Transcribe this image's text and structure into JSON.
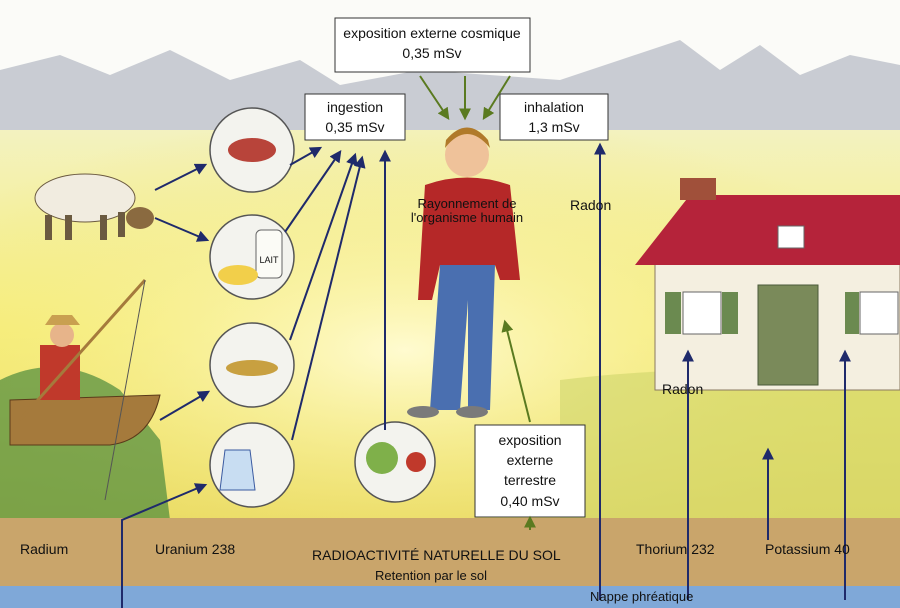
{
  "boxes": {
    "cosmic": {
      "label": "exposition externe cosmique",
      "dose": "0,35 mSv"
    },
    "ingestion": {
      "label": "ingestion",
      "dose": "0,35 mSv"
    },
    "inhalation": {
      "label": "inhalation",
      "dose": "1,3 mSv"
    },
    "terrestrial": {
      "lines": [
        "exposition",
        "externe",
        "terrestre"
      ],
      "dose": "0,40 mSv"
    }
  },
  "labels": {
    "body": [
      "Rayonnement de",
      "l'organisme humain"
    ],
    "radon_outdoor": "Radon",
    "radon_house": "Radon",
    "lait": "LAIT"
  },
  "soil": {
    "radium": "Radium",
    "uranium": "Uranium 238",
    "title": "RADIOACTIVITÉ NATURELLE DU SOL",
    "retention": "Retention par le sol",
    "thorium": "Thorium 232",
    "potassium": "Potassium 40",
    "groundwater": "Nappe phréatique"
  }
}
